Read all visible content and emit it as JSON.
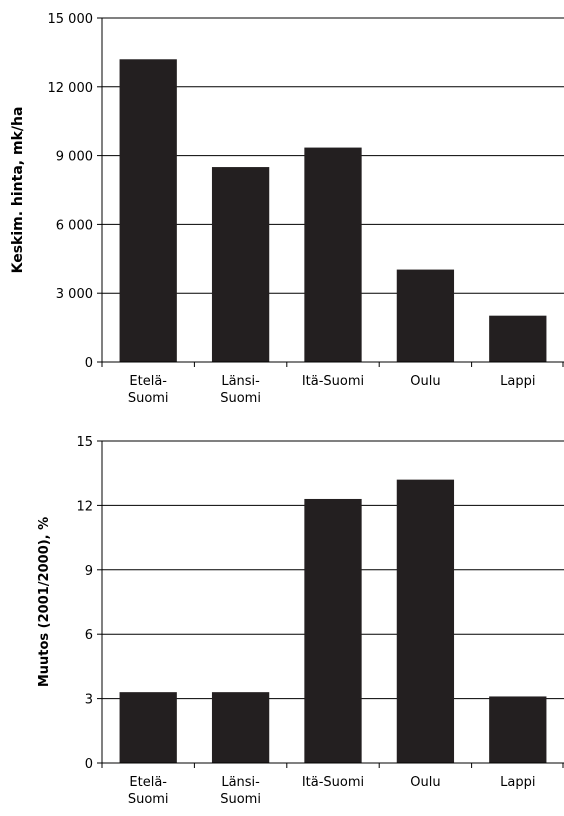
{
  "chart_data": [
    {
      "type": "bar",
      "categories": [
        [
          "Etelä-",
          "Suomi"
        ],
        [
          "Länsi-",
          "Suomi"
        ],
        [
          "Itä-Suomi"
        ],
        [
          "Oulu"
        ],
        [
          "Lappi"
        ]
      ],
      "values": [
        13200,
        8500,
        9350,
        4030,
        2020
      ],
      "ylabel": "Keskim. hinta, mk/ha",
      "ylim": [
        0,
        15000
      ],
      "yticks": [
        0,
        3000,
        6000,
        9000,
        12000,
        15000
      ],
      "ytick_labels": [
        "0",
        "3 000",
        "6 000",
        "9 000",
        "12 000",
        "15 000"
      ],
      "grid": true,
      "bar_color": "#231f20"
    },
    {
      "type": "bar",
      "categories": [
        [
          "Etelä-",
          "Suomi"
        ],
        [
          "Länsi-",
          "Suomi"
        ],
        [
          "Itä-Suomi"
        ],
        [
          "Oulu"
        ],
        [
          "Lappi"
        ]
      ],
      "values": [
        3.3,
        3.3,
        12.3,
        13.2,
        3.1
      ],
      "ylabel": "Muutos (2001/2000), %",
      "ylim": [
        0,
        15
      ],
      "yticks": [
        0,
        3,
        6,
        9,
        12,
        15
      ],
      "ytick_labels": [
        "0",
        "3",
        "6",
        "9",
        "12",
        "15"
      ],
      "grid": true,
      "bar_color": "#231f20"
    }
  ]
}
